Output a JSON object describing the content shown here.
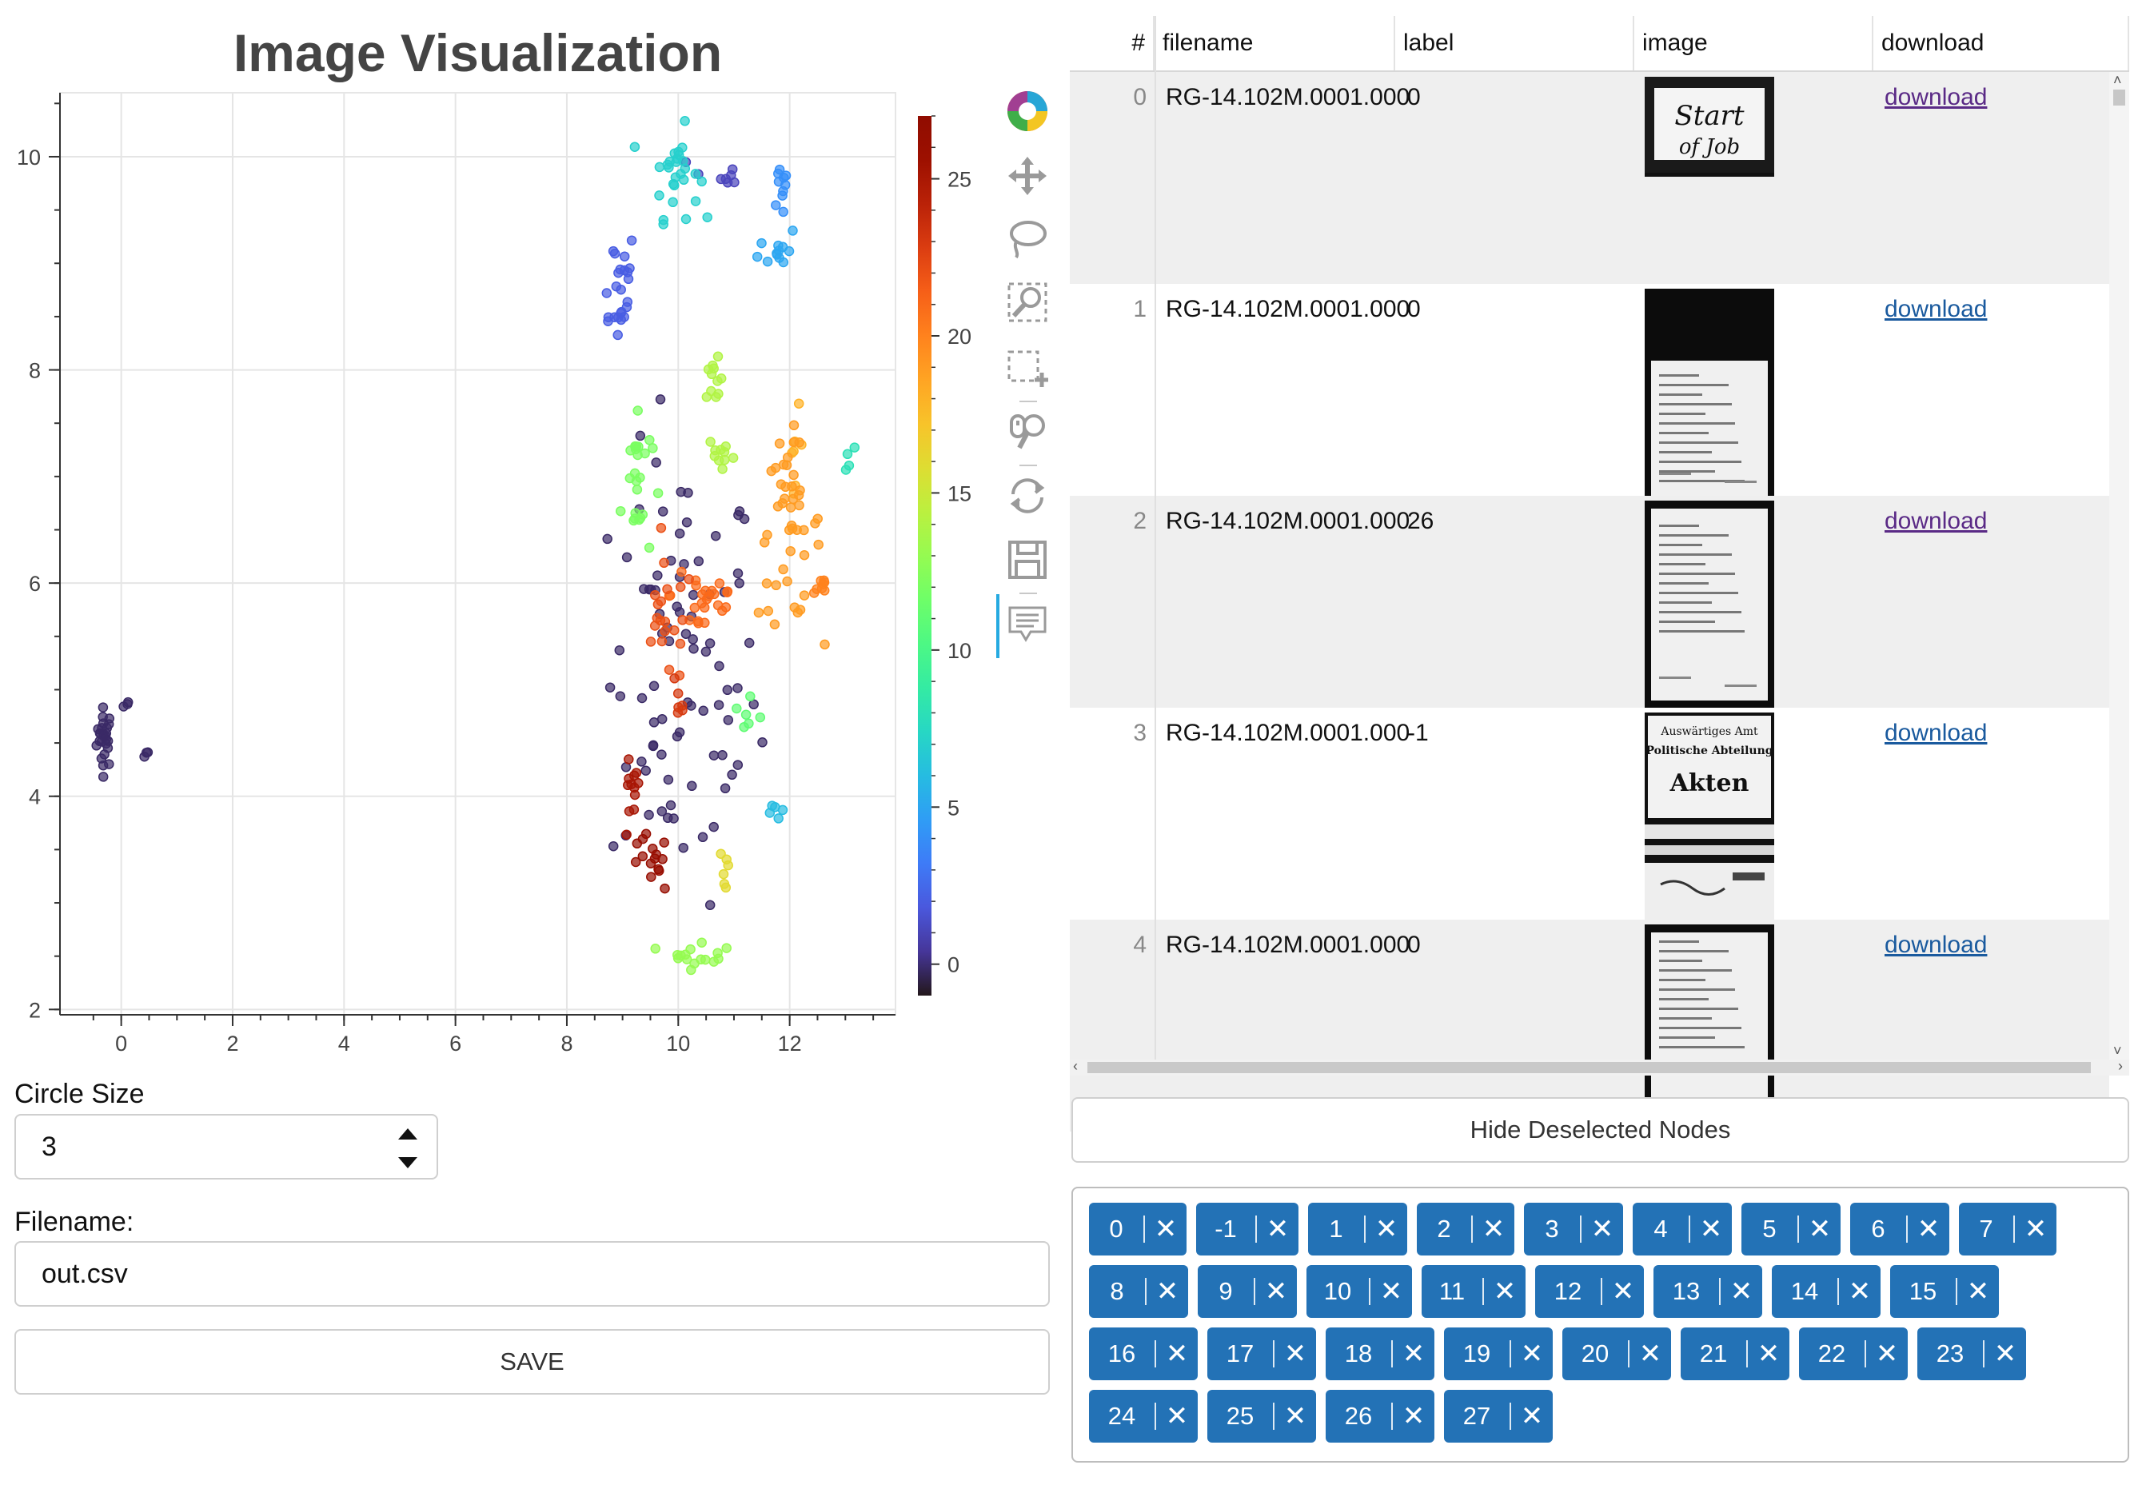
{
  "plot": {
    "title": "Image Visualization",
    "x_ticks": [
      "0",
      "2",
      "4",
      "6",
      "8",
      "10",
      "12"
    ],
    "y_ticks": [
      "2",
      "4",
      "6",
      "8",
      "10"
    ],
    "colorbar_ticks": [
      "0",
      "5",
      "10",
      "15",
      "20",
      "25"
    ]
  },
  "chart_data": {
    "type": "scatter",
    "title": "Image Visualization",
    "xlabel": "",
    "ylabel": "",
    "xlim": [
      -1.1,
      13.9
    ],
    "ylim": [
      1.95,
      10.6
    ],
    "grid": true,
    "colorbar": {
      "range": [
        -1,
        27
      ],
      "ticks": [
        0,
        5,
        10,
        15,
        20,
        25
      ],
      "colormap": "turbo"
    },
    "clusters": [
      {
        "label": -1,
        "center": [
          -0.3,
          4.55
        ],
        "spread": [
          0.1,
          0.2
        ],
        "count": 26
      },
      {
        "label": -1,
        "center": [
          0.45,
          4.4
        ],
        "spread": [
          0.04,
          0.03
        ],
        "count": 3
      },
      {
        "label": -1,
        "center": [
          0.1,
          4.85
        ],
        "spread": [
          0.05,
          0.03
        ],
        "count": 3
      },
      {
        "label": -1,
        "center": [
          10.1,
          5.1
        ],
        "spread": [
          0.95,
          1.5
        ],
        "count": 85
      },
      {
        "label": 1,
        "center": [
          10.7,
          9.8
        ],
        "spread": [
          0.35,
          0.2
        ],
        "count": 8
      },
      {
        "label": 2,
        "center": [
          8.9,
          8.8
        ],
        "spread": [
          0.25,
          0.4
        ],
        "count": 24
      },
      {
        "label": 4,
        "center": [
          11.9,
          9.7
        ],
        "spread": [
          0.15,
          0.25
        ],
        "count": 10
      },
      {
        "label": 5,
        "center": [
          11.8,
          9.15
        ],
        "spread": [
          0.25,
          0.15
        ],
        "count": 12
      },
      {
        "label": 7,
        "center": [
          9.95,
          9.85
        ],
        "spread": [
          0.3,
          0.3
        ],
        "count": 28
      },
      {
        "label": 11,
        "center": [
          11.3,
          4.7
        ],
        "spread": [
          0.2,
          0.15
        ],
        "count": 6
      },
      {
        "label": 6,
        "center": [
          11.75,
          3.9
        ],
        "spread": [
          0.1,
          0.1
        ],
        "count": 5
      },
      {
        "label": 12,
        "center": [
          9.25,
          6.95
        ],
        "spread": [
          0.2,
          0.55
        ],
        "count": 24
      },
      {
        "label": 8,
        "center": [
          13.05,
          7.15
        ],
        "spread": [
          0.08,
          0.1
        ],
        "count": 4
      },
      {
        "label": 13,
        "center": [
          10.4,
          2.55
        ],
        "spread": [
          0.4,
          0.12
        ],
        "count": 16
      },
      {
        "label": 14,
        "center": [
          10.65,
          7.8
        ],
        "spread": [
          0.1,
          0.2
        ],
        "count": 12
      },
      {
        "label": 14,
        "center": [
          10.8,
          7.2
        ],
        "spread": [
          0.2,
          0.15
        ],
        "count": 9
      },
      {
        "label": 16,
        "center": [
          10.85,
          3.3
        ],
        "spread": [
          0.07,
          0.18
        ],
        "count": 6
      },
      {
        "label": 18,
        "center": [
          12.1,
          7.3
        ],
        "spread": [
          0.1,
          0.25
        ],
        "count": 7
      },
      {
        "label": 19,
        "center": [
          12.0,
          6.5
        ],
        "spread": [
          0.4,
          0.6
        ],
        "count": 45
      },
      {
        "label": 20,
        "center": [
          12.55,
          5.95
        ],
        "spread": [
          0.1,
          0.1
        ],
        "count": 8
      },
      {
        "label": 21,
        "center": [
          10.5,
          5.9
        ],
        "spread": [
          0.45,
          0.35
        ],
        "count": 24
      },
      {
        "label": 22,
        "center": [
          9.8,
          5.6
        ],
        "spread": [
          0.35,
          0.4
        ],
        "count": 20
      },
      {
        "label": 23,
        "center": [
          10.0,
          4.9
        ],
        "spread": [
          0.1,
          0.2
        ],
        "count": 6
      },
      {
        "label": 25,
        "center": [
          9.15,
          3.95
        ],
        "spread": [
          0.12,
          0.3
        ],
        "count": 12
      },
      {
        "label": 26,
        "center": [
          9.5,
          3.35
        ],
        "spread": [
          0.25,
          0.2
        ],
        "count": 15
      }
    ]
  },
  "widgets": {
    "circle_size_label": "Circle Size",
    "circle_size_value": "3",
    "filename_label": "Filename:",
    "filename_value": "out.csv",
    "save_label": "SAVE",
    "hide_button_label": "Hide Deselected Nodes"
  },
  "table": {
    "columns": [
      "#",
      "filename",
      "label",
      "image",
      "download"
    ],
    "rows": [
      {
        "index": "0",
        "filename": "RG-14.102M.0001.000",
        "label": "0",
        "download": "download",
        "visited": true,
        "thumb": "start-of-job"
      },
      {
        "index": "1",
        "filename": "RG-14.102M.0001.000",
        "label": "0",
        "download": "download",
        "visited": false,
        "thumb": "form-doc"
      },
      {
        "index": "2",
        "filename": "RG-14.102M.0001.000",
        "label": "26",
        "download": "download",
        "visited": true,
        "thumb": "letter-doc"
      },
      {
        "index": "3",
        "filename": "RG-14.102M.0001.000",
        "label": "-1",
        "download": "download",
        "visited": false,
        "thumb": "akten-cover"
      },
      {
        "index": "4",
        "filename": "RG-14.102M.0001.000",
        "label": "0",
        "download": "download",
        "visited": false,
        "thumb": "typed-doc"
      }
    ],
    "thumb_text": {
      "start_line1": "Start",
      "start_line2": "of Job",
      "akten_line1": "Auswärtiges Amt",
      "akten_line2": "Politische Abteilung",
      "akten_line3": "Akten"
    }
  },
  "filter_chips": [
    "0",
    "-1",
    "1",
    "2",
    "3",
    "4",
    "5",
    "6",
    "7",
    "8",
    "9",
    "10",
    "11",
    "12",
    "13",
    "14",
    "15",
    "16",
    "17",
    "18",
    "19",
    "20",
    "21",
    "22",
    "23",
    "24",
    "25",
    "26",
    "27"
  ],
  "colors": {
    "chip": "#2372b6",
    "link": "#1a5a9e",
    "visited_link": "#5a2a86",
    "accent": "#26aae1"
  }
}
